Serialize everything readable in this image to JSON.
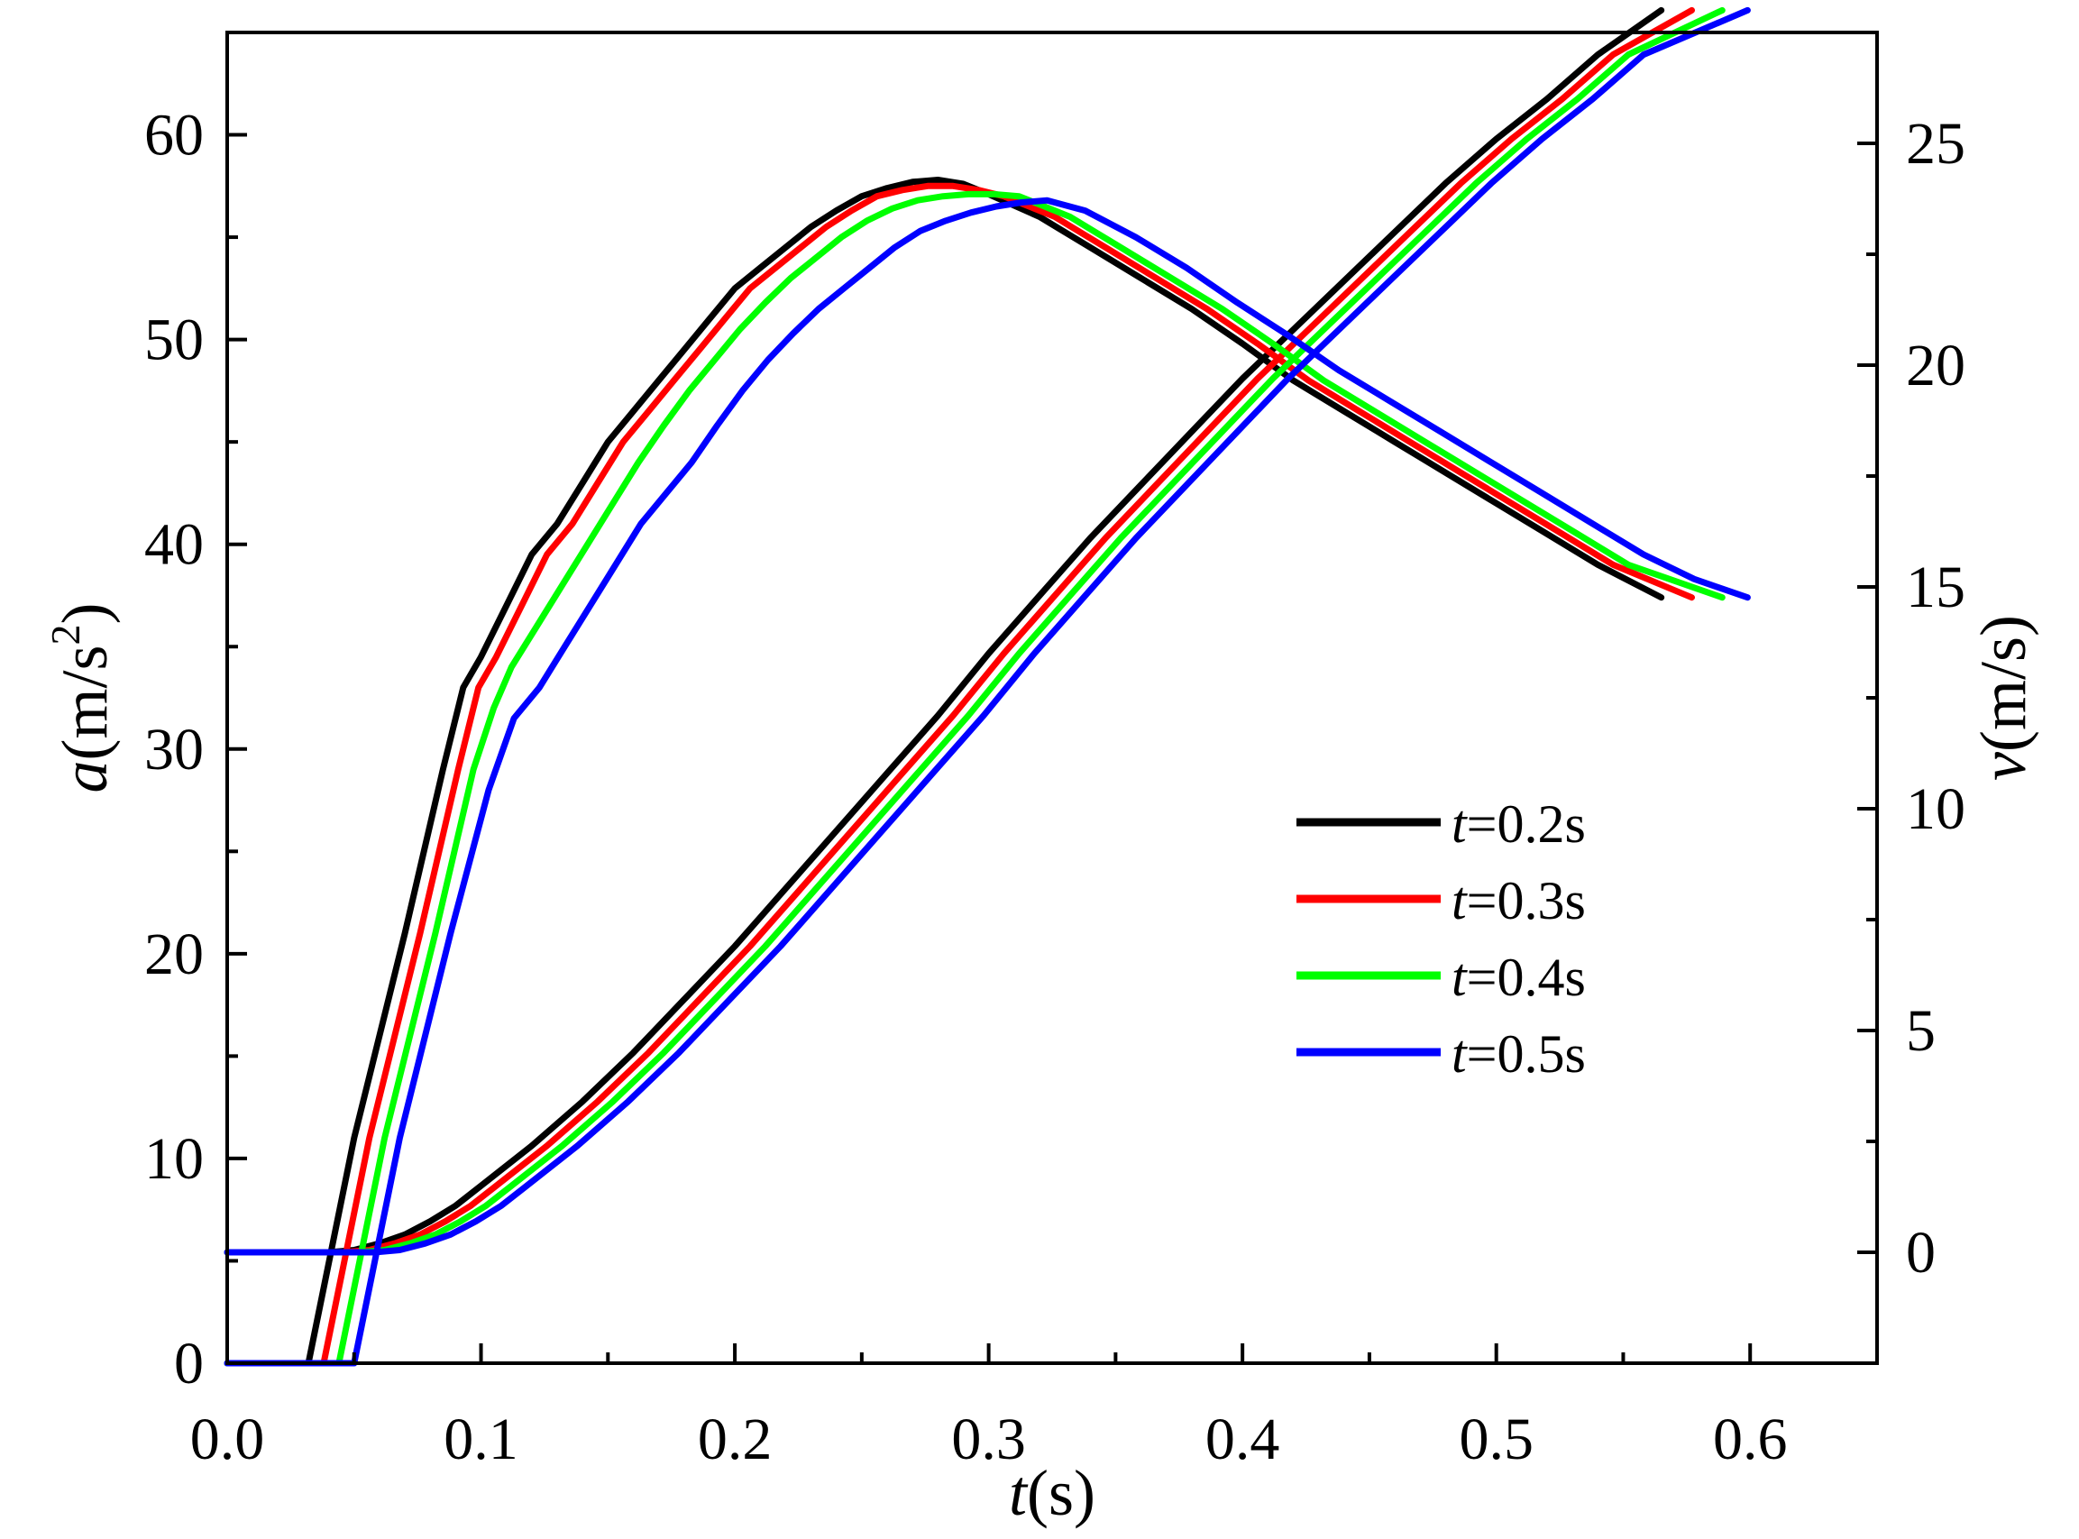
{
  "chart_data": {
    "type": "line",
    "xlabel": {
      "var": "t",
      "unit": "(s)"
    },
    "ylabel_left": {
      "var": "a",
      "unit_pre": "(m/s",
      "unit_sup": "2",
      "unit_post": ")"
    },
    "ylabel_right": {
      "var": "v",
      "unit": "(m/s)"
    },
    "xlim": [
      0.0,
      0.65
    ],
    "ylim_left": [
      0,
      65
    ],
    "ylim_right": [
      -2.5,
      27.5
    ],
    "x_ticks": [
      "0.0",
      "0.1",
      "0.2",
      "0.3",
      "0.4",
      "0.5",
      "0.6"
    ],
    "y_ticks_left": [
      "0",
      "10",
      "20",
      "30",
      "40",
      "50",
      "60"
    ],
    "y_ticks_right": [
      "0",
      "5",
      "10",
      "15",
      "20",
      "25"
    ],
    "legend_position": "right-middle",
    "grid": false,
    "series": [
      {
        "name": "t=0.2s",
        "name_var": "t",
        "name_rest": "=0.2s",
        "color": "#000000",
        "acceleration": [
          [
            0.0,
            0
          ],
          [
            0.032,
            0
          ],
          [
            0.05,
            11
          ],
          [
            0.07,
            21
          ],
          [
            0.085,
            29
          ],
          [
            0.093,
            33
          ],
          [
            0.1,
            34.5
          ],
          [
            0.11,
            37
          ],
          [
            0.12,
            39.5
          ],
          [
            0.13,
            41
          ],
          [
            0.14,
            43
          ],
          [
            0.15,
            45
          ],
          [
            0.16,
            46.5
          ],
          [
            0.17,
            48
          ],
          [
            0.18,
            49.5
          ],
          [
            0.19,
            51
          ],
          [
            0.2,
            52.5
          ],
          [
            0.21,
            53.5
          ],
          [
            0.22,
            54.5
          ],
          [
            0.23,
            55.5
          ],
          [
            0.24,
            56.3
          ],
          [
            0.25,
            57
          ],
          [
            0.26,
            57.4
          ],
          [
            0.27,
            57.7
          ],
          [
            0.28,
            57.8
          ],
          [
            0.29,
            57.6
          ],
          [
            0.3,
            57.1
          ],
          [
            0.32,
            56
          ],
          [
            0.34,
            54.5
          ],
          [
            0.36,
            53
          ],
          [
            0.38,
            51.5
          ],
          [
            0.4,
            49.8
          ],
          [
            0.42,
            48
          ],
          [
            0.44,
            46.5
          ],
          [
            0.46,
            45
          ],
          [
            0.48,
            43.5
          ],
          [
            0.5,
            42
          ],
          [
            0.52,
            40.5
          ],
          [
            0.54,
            39
          ],
          [
            0.565,
            37.4
          ]
        ],
        "velocity": [
          [
            0.0,
            0
          ],
          [
            0.04,
            0
          ],
          [
            0.05,
            0.05
          ],
          [
            0.06,
            0.2
          ],
          [
            0.07,
            0.4
          ],
          [
            0.08,
            0.7
          ],
          [
            0.09,
            1.05
          ],
          [
            0.1,
            1.5
          ],
          [
            0.12,
            2.4
          ],
          [
            0.14,
            3.4
          ],
          [
            0.16,
            4.5
          ],
          [
            0.18,
            5.7
          ],
          [
            0.2,
            6.9
          ],
          [
            0.22,
            8.2
          ],
          [
            0.24,
            9.5
          ],
          [
            0.26,
            10.8
          ],
          [
            0.28,
            12.1
          ],
          [
            0.3,
            13.5
          ],
          [
            0.32,
            14.8
          ],
          [
            0.34,
            16.1
          ],
          [
            0.36,
            17.3
          ],
          [
            0.38,
            18.5
          ],
          [
            0.4,
            19.7
          ],
          [
            0.42,
            20.8
          ],
          [
            0.44,
            21.9
          ],
          [
            0.46,
            23
          ],
          [
            0.48,
            24.1
          ],
          [
            0.5,
            25.1
          ],
          [
            0.52,
            26
          ],
          [
            0.54,
            27
          ],
          [
            0.565,
            28
          ]
        ]
      },
      {
        "name": "t=0.3s",
        "name_var": "t",
        "name_rest": "=0.3s",
        "color": "#ff0000",
        "acceleration": [
          [
            0.0,
            0
          ],
          [
            0.038,
            0
          ],
          [
            0.056,
            11
          ],
          [
            0.076,
            21
          ],
          [
            0.091,
            29
          ],
          [
            0.099,
            33
          ],
          [
            0.106,
            34.5
          ],
          [
            0.116,
            37
          ],
          [
            0.126,
            39.5
          ],
          [
            0.136,
            41
          ],
          [
            0.146,
            43
          ],
          [
            0.156,
            45
          ],
          [
            0.166,
            46.5
          ],
          [
            0.176,
            48
          ],
          [
            0.186,
            49.5
          ],
          [
            0.196,
            51
          ],
          [
            0.206,
            52.5
          ],
          [
            0.216,
            53.5
          ],
          [
            0.226,
            54.5
          ],
          [
            0.236,
            55.5
          ],
          [
            0.246,
            56.3
          ],
          [
            0.256,
            57
          ],
          [
            0.266,
            57.3
          ],
          [
            0.276,
            57.5
          ],
          [
            0.286,
            57.5
          ],
          [
            0.296,
            57.3
          ],
          [
            0.306,
            57
          ],
          [
            0.326,
            56
          ],
          [
            0.346,
            54.5
          ],
          [
            0.366,
            53
          ],
          [
            0.386,
            51.5
          ],
          [
            0.406,
            49.8
          ],
          [
            0.426,
            48
          ],
          [
            0.446,
            46.5
          ],
          [
            0.466,
            45
          ],
          [
            0.486,
            43.5
          ],
          [
            0.506,
            42
          ],
          [
            0.526,
            40.5
          ],
          [
            0.546,
            39
          ],
          [
            0.577,
            37.4
          ]
        ],
        "velocity": [
          [
            0.0,
            0
          ],
          [
            0.046,
            0
          ],
          [
            0.056,
            0.05
          ],
          [
            0.066,
            0.2
          ],
          [
            0.076,
            0.4
          ],
          [
            0.086,
            0.7
          ],
          [
            0.096,
            1.05
          ],
          [
            0.106,
            1.5
          ],
          [
            0.126,
            2.4
          ],
          [
            0.146,
            3.4
          ],
          [
            0.166,
            4.5
          ],
          [
            0.186,
            5.7
          ],
          [
            0.206,
            6.9
          ],
          [
            0.226,
            8.2
          ],
          [
            0.246,
            9.5
          ],
          [
            0.266,
            10.8
          ],
          [
            0.286,
            12.1
          ],
          [
            0.306,
            13.5
          ],
          [
            0.326,
            14.8
          ],
          [
            0.346,
            16.1
          ],
          [
            0.366,
            17.3
          ],
          [
            0.386,
            18.5
          ],
          [
            0.406,
            19.7
          ],
          [
            0.426,
            20.8
          ],
          [
            0.446,
            21.9
          ],
          [
            0.466,
            23
          ],
          [
            0.486,
            24.1
          ],
          [
            0.506,
            25.1
          ],
          [
            0.526,
            26
          ],
          [
            0.546,
            27
          ],
          [
            0.577,
            28
          ]
        ]
      },
      {
        "name": "t=0.4s",
        "name_var": "t",
        "name_rest": "=0.4s",
        "color": "#00ff00",
        "acceleration": [
          [
            0.0,
            0
          ],
          [
            0.044,
            0
          ],
          [
            0.062,
            11
          ],
          [
            0.082,
            21
          ],
          [
            0.097,
            29
          ],
          [
            0.105,
            32
          ],
          [
            0.112,
            34
          ],
          [
            0.122,
            36
          ],
          [
            0.132,
            38
          ],
          [
            0.142,
            40
          ],
          [
            0.152,
            42
          ],
          [
            0.162,
            44
          ],
          [
            0.172,
            45.8
          ],
          [
            0.182,
            47.5
          ],
          [
            0.192,
            49
          ],
          [
            0.202,
            50.5
          ],
          [
            0.212,
            51.8
          ],
          [
            0.222,
            53
          ],
          [
            0.232,
            54
          ],
          [
            0.242,
            55
          ],
          [
            0.252,
            55.8
          ],
          [
            0.262,
            56.4
          ],
          [
            0.272,
            56.8
          ],
          [
            0.282,
            57
          ],
          [
            0.292,
            57.1
          ],
          [
            0.302,
            57.1
          ],
          [
            0.312,
            57
          ],
          [
            0.332,
            56
          ],
          [
            0.352,
            54.5
          ],
          [
            0.372,
            53
          ],
          [
            0.392,
            51.5
          ],
          [
            0.412,
            49.8
          ],
          [
            0.432,
            48
          ],
          [
            0.452,
            46.5
          ],
          [
            0.472,
            45
          ],
          [
            0.492,
            43.5
          ],
          [
            0.512,
            42
          ],
          [
            0.532,
            40.5
          ],
          [
            0.552,
            39
          ],
          [
            0.589,
            37.4
          ]
        ],
        "velocity": [
          [
            0.0,
            0
          ],
          [
            0.052,
            0
          ],
          [
            0.062,
            0.05
          ],
          [
            0.072,
            0.2
          ],
          [
            0.082,
            0.4
          ],
          [
            0.092,
            0.7
          ],
          [
            0.102,
            1.05
          ],
          [
            0.112,
            1.5
          ],
          [
            0.132,
            2.4
          ],
          [
            0.152,
            3.4
          ],
          [
            0.172,
            4.5
          ],
          [
            0.192,
            5.7
          ],
          [
            0.212,
            6.9
          ],
          [
            0.232,
            8.2
          ],
          [
            0.252,
            9.5
          ],
          [
            0.272,
            10.8
          ],
          [
            0.292,
            12.1
          ],
          [
            0.312,
            13.5
          ],
          [
            0.332,
            14.8
          ],
          [
            0.352,
            16.1
          ],
          [
            0.372,
            17.3
          ],
          [
            0.392,
            18.5
          ],
          [
            0.412,
            19.7
          ],
          [
            0.432,
            20.8
          ],
          [
            0.452,
            21.9
          ],
          [
            0.472,
            23
          ],
          [
            0.492,
            24.1
          ],
          [
            0.512,
            25.1
          ],
          [
            0.532,
            26
          ],
          [
            0.552,
            27
          ],
          [
            0.589,
            28
          ]
        ]
      },
      {
        "name": "t=0.5s",
        "name_var": "t",
        "name_rest": "=0.5s",
        "color": "#0000ff",
        "acceleration": [
          [
            0.0,
            0
          ],
          [
            0.05,
            0
          ],
          [
            0.068,
            11
          ],
          [
            0.088,
            21
          ],
          [
            0.103,
            28
          ],
          [
            0.113,
            31.5
          ],
          [
            0.123,
            33
          ],
          [
            0.133,
            35
          ],
          [
            0.143,
            37
          ],
          [
            0.153,
            39
          ],
          [
            0.163,
            41
          ],
          [
            0.173,
            42.5
          ],
          [
            0.183,
            44
          ],
          [
            0.193,
            45.8
          ],
          [
            0.203,
            47.5
          ],
          [
            0.213,
            49
          ],
          [
            0.223,
            50.3
          ],
          [
            0.233,
            51.5
          ],
          [
            0.243,
            52.5
          ],
          [
            0.253,
            53.5
          ],
          [
            0.263,
            54.5
          ],
          [
            0.273,
            55.3
          ],
          [
            0.283,
            55.8
          ],
          [
            0.293,
            56.2
          ],
          [
            0.303,
            56.5
          ],
          [
            0.313,
            56.7
          ],
          [
            0.323,
            56.8
          ],
          [
            0.338,
            56.3
          ],
          [
            0.358,
            55
          ],
          [
            0.378,
            53.5
          ],
          [
            0.398,
            51.8
          ],
          [
            0.418,
            50.2
          ],
          [
            0.438,
            48.5
          ],
          [
            0.458,
            47
          ],
          [
            0.478,
            45.5
          ],
          [
            0.498,
            44
          ],
          [
            0.518,
            42.5
          ],
          [
            0.538,
            41
          ],
          [
            0.558,
            39.5
          ],
          [
            0.578,
            38.3
          ],
          [
            0.599,
            37.4
          ]
        ],
        "velocity": [
          [
            0.0,
            0
          ],
          [
            0.058,
            0
          ],
          [
            0.068,
            0.05
          ],
          [
            0.078,
            0.2
          ],
          [
            0.088,
            0.4
          ],
          [
            0.098,
            0.7
          ],
          [
            0.108,
            1.05
          ],
          [
            0.118,
            1.5
          ],
          [
            0.138,
            2.4
          ],
          [
            0.158,
            3.4
          ],
          [
            0.178,
            4.5
          ],
          [
            0.198,
            5.7
          ],
          [
            0.218,
            6.9
          ],
          [
            0.238,
            8.2
          ],
          [
            0.258,
            9.5
          ],
          [
            0.278,
            10.8
          ],
          [
            0.298,
            12.1
          ],
          [
            0.318,
            13.5
          ],
          [
            0.338,
            14.8
          ],
          [
            0.358,
            16.1
          ],
          [
            0.378,
            17.3
          ],
          [
            0.398,
            18.5
          ],
          [
            0.418,
            19.7
          ],
          [
            0.438,
            20.8
          ],
          [
            0.458,
            21.9
          ],
          [
            0.478,
            23
          ],
          [
            0.498,
            24.1
          ],
          [
            0.518,
            25.1
          ],
          [
            0.538,
            26
          ],
          [
            0.558,
            27
          ],
          [
            0.599,
            28
          ]
        ]
      }
    ]
  }
}
